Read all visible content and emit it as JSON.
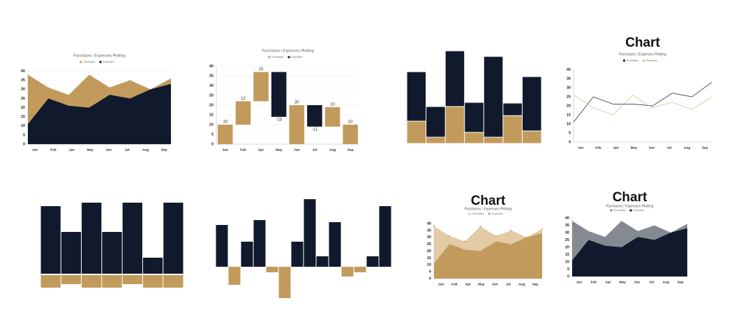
{
  "chart_data": [
    {
      "type": "area",
      "title": "Purchases / Expenses Plotting",
      "legend": true,
      "grid": true,
      "categories": [
        "Jan",
        "Feb",
        "Apr",
        "May",
        "Jun",
        "Jul",
        "Aug",
        "Sep"
      ],
      "series": [
        {
          "name": "Purchases",
          "color": "#c29b5c",
          "values": [
            38,
            31,
            27,
            38,
            31,
            35,
            30,
            36
          ]
        },
        {
          "name": "Expenses",
          "color": "#111a2c",
          "values": [
            11,
            25,
            21,
            20,
            27,
            25,
            30,
            33
          ]
        }
      ],
      "ylim": [
        0,
        40
      ],
      "yticks": [
        0,
        5,
        10,
        15,
        20,
        25,
        30,
        35,
        40
      ]
    },
    {
      "type": "waterfall",
      "title": "Purchases / Expenses Plotting",
      "legend": true,
      "grid": true,
      "categories": [
        "Jan",
        "Feb",
        "Apr",
        "May",
        "Jun",
        "Jul",
        "Aug",
        "Sep"
      ],
      "series": [
        {
          "name": "Purchases",
          "color": "#c29b5c",
          "values": [
            10,
            12,
            15,
            -23,
            20,
            -11,
            10,
            10
          ],
          "starts": [
            0,
            10,
            22,
            37,
            0,
            20,
            9,
            0
          ]
        },
        {
          "name": "Expenses",
          "color": "#111a2c"
        }
      ],
      "ylim": [
        0,
        40
      ],
      "yticks": [
        0,
        5,
        10,
        15,
        20,
        25,
        30,
        35,
        40
      ]
    },
    {
      "type": "stacked_bar",
      "series": [
        {
          "color": "#c29b5c",
          "values": [
            32,
            9,
            53,
            16,
            9,
            40,
            18
          ]
        },
        {
          "color": "#111a2c",
          "values": [
            71,
            44,
            80,
            43,
            116,
            18,
            78
          ]
        }
      ]
    },
    {
      "type": "line",
      "title": "Chart",
      "subtitle": "Purchases / Expenses Plotting",
      "legend": true,
      "categories": [
        "Jan",
        "Feb",
        "Apr",
        "May",
        "Jun",
        "Jul",
        "Aug",
        "Sep"
      ],
      "series": [
        {
          "name": "Purchases",
          "color": "#111a2c",
          "values": [
            11,
            25,
            21,
            21,
            20,
            27,
            25,
            33
          ]
        },
        {
          "name": "Expenses",
          "color": "#d7b98a",
          "values": [
            26,
            19,
            15,
            26,
            19,
            22,
            18,
            25
          ]
        }
      ],
      "ylim": [
        0,
        40
      ],
      "yticks": [
        0,
        5,
        10,
        15,
        20,
        25,
        30,
        35,
        40
      ]
    },
    {
      "type": "bar",
      "series": [
        {
          "color": "#111a2c",
          "values": [
            97,
            60,
            102,
            60,
            102,
            23,
            102
          ]
        },
        {
          "color": "#c29b5c",
          "values": [
            -18,
            -13,
            -18,
            -18,
            -13,
            -18,
            -18
          ]
        }
      ]
    },
    {
      "type": "bar",
      "series": [
        {
          "color": "#111a2c",
          "negative_color": "#c29b5c",
          "values": [
            60,
            -26,
            36,
            67,
            -8,
            -45,
            36,
            97,
            15,
            64,
            -14,
            -8,
            15,
            87
          ]
        }
      ]
    },
    {
      "type": "area",
      "title": "Chart",
      "subtitle": "Purchases / Expenses Plotting",
      "legend": true,
      "markers": true,
      "categories": [
        "Jan",
        "Feb",
        "Apr",
        "May",
        "Jun",
        "Jul",
        "Aug",
        "Sep"
      ],
      "series": [
        {
          "name": "Purchases",
          "color": "#e2cba5",
          "values": [
            38,
            31,
            27,
            38,
            31,
            35,
            30,
            36
          ]
        },
        {
          "name": "Expenses",
          "color": "#c29b5c",
          "values": [
            11,
            25,
            21,
            20,
            27,
            25,
            30,
            33
          ]
        }
      ],
      "ylim": [
        0,
        40
      ],
      "yticks": [
        0,
        5,
        10,
        15,
        20,
        25,
        30,
        35,
        40
      ]
    },
    {
      "type": "area",
      "title": "Chart",
      "subtitle": "Purchases / Expenses Plotting",
      "legend": true,
      "categories": [
        "Jan",
        "Feb",
        "Apr",
        "May",
        "Jun",
        "Jul",
        "Aug",
        "Sep"
      ],
      "series": [
        {
          "name": "Purchases",
          "color": "#858a92",
          "values": [
            38,
            31,
            27,
            38,
            31,
            35,
            30,
            36
          ]
        },
        {
          "name": "Expenses",
          "color": "#111a2c",
          "values": [
            11,
            25,
            21,
            20,
            27,
            25,
            30,
            33
          ]
        }
      ],
      "ylim": [
        0,
        40
      ],
      "yticks": [
        0,
        5,
        10,
        15,
        20,
        25,
        30,
        35,
        40
      ]
    }
  ]
}
